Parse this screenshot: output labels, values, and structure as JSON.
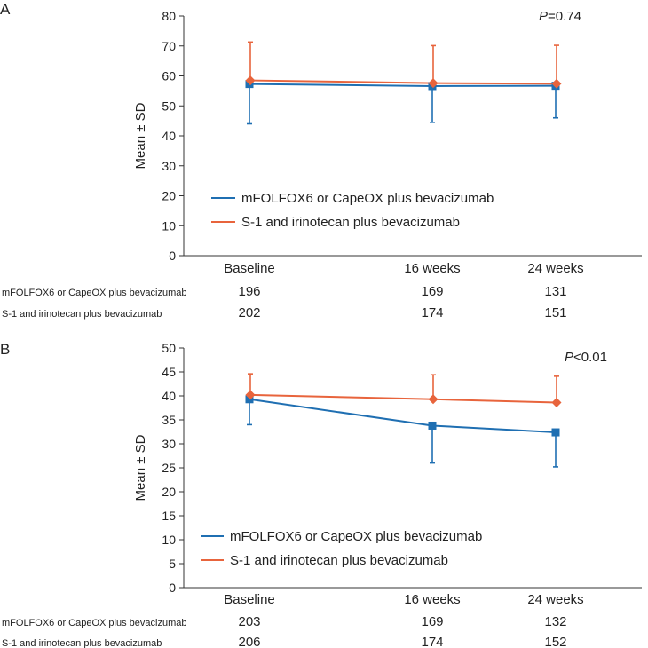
{
  "colors": {
    "series1": "#1f6fb2",
    "series2": "#e8643c"
  },
  "chart_data": [
    {
      "type": "line",
      "panel": "A",
      "ylabel": "Mean ± SD",
      "ylim": [
        0,
        80
      ],
      "yticks": [
        0,
        10,
        20,
        30,
        40,
        50,
        60,
        70,
        80
      ],
      "categories": [
        "Baseline",
        "16 weeks",
        "24 weeks"
      ],
      "p_prefix": "P",
      "p_suffix": "=0.74",
      "series": [
        {
          "name": "mFOLFOX6 or CapeOX plus bevacizumab",
          "marker": "square",
          "values": [
            57.3,
            56.6,
            56.7
          ],
          "err_low": [
            44.0,
            44.5,
            46.0
          ],
          "err_high": null,
          "counts": [
            196,
            169,
            131
          ]
        },
        {
          "name": "S-1 and irinotecan plus bevacizumab",
          "marker": "diamond",
          "values": [
            58.5,
            57.6,
            57.4
          ],
          "err_low": null,
          "err_high": [
            71.3,
            70.1,
            70.2
          ],
          "counts": [
            202,
            174,
            151
          ]
        }
      ]
    },
    {
      "type": "line",
      "panel": "B",
      "ylabel": "Mean ± SD",
      "ylim": [
        0,
        50
      ],
      "yticks": [
        0,
        5,
        10,
        15,
        20,
        25,
        30,
        35,
        40,
        45,
        50
      ],
      "categories": [
        "Baseline",
        "16 weeks",
        "24 weeks"
      ],
      "p_prefix": "P",
      "p_suffix": "<0.01",
      "series": [
        {
          "name": "mFOLFOX6 or CapeOX plus bevacizumab",
          "marker": "square",
          "values": [
            39.3,
            33.8,
            32.4
          ],
          "err_low": [
            34.0,
            26.0,
            25.2
          ],
          "err_high": null,
          "counts": [
            203,
            169,
            132
          ]
        },
        {
          "name": "S-1 and irinotecan plus bevacizumab",
          "marker": "diamond",
          "values": [
            40.2,
            39.3,
            38.6
          ],
          "err_low": null,
          "err_high": [
            44.6,
            44.4,
            44.1
          ],
          "counts": [
            206,
            174,
            152
          ]
        }
      ]
    }
  ]
}
